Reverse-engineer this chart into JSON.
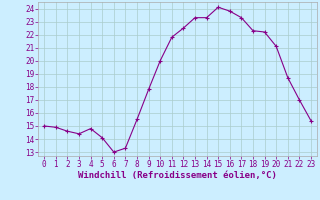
{
  "x": [
    0,
    1,
    2,
    3,
    4,
    5,
    6,
    7,
    8,
    9,
    10,
    11,
    12,
    13,
    14,
    15,
    16,
    17,
    18,
    19,
    20,
    21,
    22,
    23
  ],
  "y": [
    15.0,
    14.9,
    14.6,
    14.4,
    14.8,
    14.1,
    13.0,
    13.3,
    15.5,
    17.8,
    20.0,
    21.8,
    22.5,
    23.3,
    23.3,
    24.1,
    23.8,
    23.3,
    22.3,
    22.2,
    21.1,
    18.7,
    17.0,
    15.4
  ],
  "line_color": "#880088",
  "marker": "+",
  "bg_color": "#cceeff",
  "grid_color": "#aacccc",
  "xlabel": "Windchill (Refroidissement éolien,°C)",
  "xlim": [
    -0.5,
    23.5
  ],
  "ylim": [
    12.7,
    24.5
  ],
  "yticks": [
    13,
    14,
    15,
    16,
    17,
    18,
    19,
    20,
    21,
    22,
    23,
    24
  ],
  "xticks": [
    0,
    1,
    2,
    3,
    4,
    5,
    6,
    7,
    8,
    9,
    10,
    11,
    12,
    13,
    14,
    15,
    16,
    17,
    18,
    19,
    20,
    21,
    22,
    23
  ],
  "line_width": 0.8,
  "marker_size": 3,
  "tick_fontsize": 5.5,
  "xlabel_fontsize": 6.5
}
